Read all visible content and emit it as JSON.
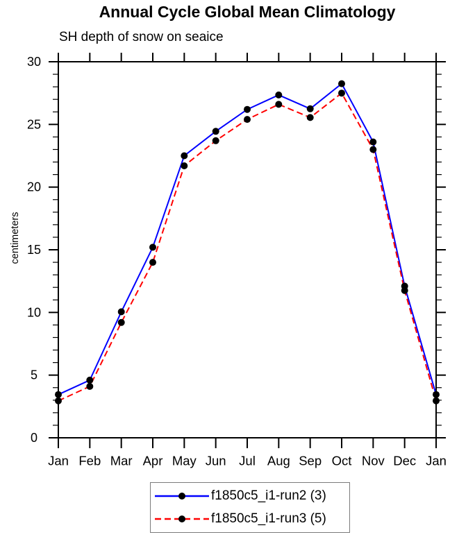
{
  "page": {
    "background": "#ffffff"
  },
  "chart_data": {
    "type": "line",
    "title": "Annual Cycle Global Mean Climatology",
    "subtitle": "SH depth of snow on seaice",
    "xlabel": "",
    "ylabel": "centimeters",
    "categories": [
      "Jan",
      "Feb",
      "Mar",
      "Apr",
      "May",
      "Jun",
      "Jul",
      "Aug",
      "Sep",
      "Oct",
      "Nov",
      "Dec",
      "Jan"
    ],
    "ylim": [
      0,
      30
    ],
    "y_major_ticks": [
      0,
      5,
      10,
      15,
      20,
      25,
      30
    ],
    "y_minor_step": 1,
    "grid": false,
    "legend_position": "bottom-center",
    "axis_color": "#000000",
    "marker_color": "#000000",
    "series": [
      {
        "name": "f1850c5_i1-run2 (3)",
        "color": "#0000ff",
        "line_style": "solid",
        "marker": "filled-circle",
        "values": [
          3.45,
          4.6,
          10.05,
          15.2,
          22.5,
          24.45,
          26.2,
          27.35,
          26.25,
          28.25,
          23.6,
          12.1,
          3.45
        ]
      },
      {
        "name": "f1850c5_i1-run3 (5)",
        "color": "#ff0000",
        "line_style": "dashed",
        "marker": "filled-circle",
        "values": [
          2.95,
          4.1,
          9.2,
          14.0,
          21.7,
          23.7,
          25.4,
          26.6,
          25.55,
          27.5,
          23.0,
          11.75,
          2.95
        ]
      }
    ]
  }
}
